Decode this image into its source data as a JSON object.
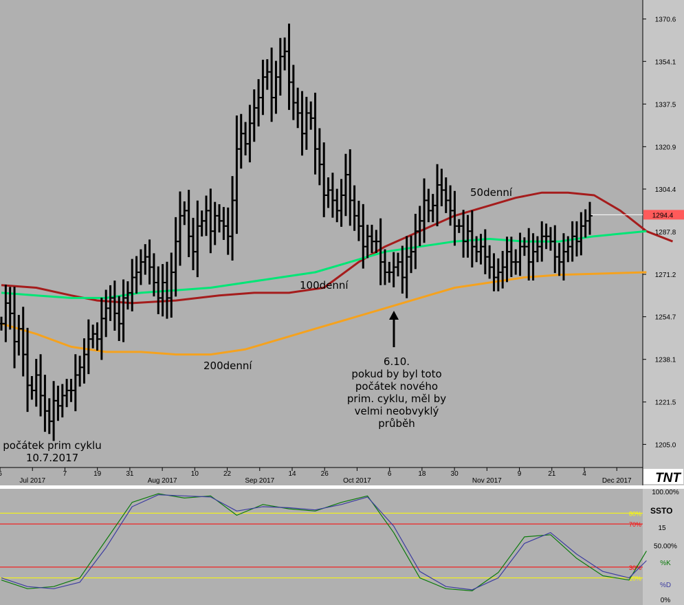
{
  "chart_data": [
    {
      "type": "bar",
      "subtype": "ohlc",
      "ylim": [
        1196,
        1378
      ],
      "price_labels": [
        "1370.6",
        "1354.1",
        "1337.5",
        "1320.9",
        "1304.4",
        "1287.8",
        "1271.2",
        "1254.7",
        "1238.1",
        "1221.5",
        "1205.0"
      ],
      "current_price": "1294.4",
      "x_labels": [
        {
          "text": "6",
          "sub": ""
        },
        {
          "text": "Jul 2017",
          "sub": "sub"
        },
        {
          "text": "7",
          "sub": ""
        },
        {
          "text": "19",
          "sub": ""
        },
        {
          "text": "31",
          "sub": ""
        },
        {
          "text": "Aug 2017",
          "sub": "sub"
        },
        {
          "text": "10",
          "sub": ""
        },
        {
          "text": "22",
          "sub": ""
        },
        {
          "text": "Sep 2017",
          "sub": "sub"
        },
        {
          "text": "14",
          "sub": ""
        },
        {
          "text": "26",
          "sub": ""
        },
        {
          "text": "Oct 2017",
          "sub": "sub"
        },
        {
          "text": "6",
          "sub": ""
        },
        {
          "text": "18",
          "sub": ""
        },
        {
          "text": "30",
          "sub": ""
        },
        {
          "text": "Nov 2017",
          "sub": "sub"
        },
        {
          "text": "9",
          "sub": ""
        },
        {
          "text": "21",
          "sub": ""
        },
        {
          "text": "4",
          "sub": ""
        },
        {
          "text": "Dec 2017",
          "sub": "sub"
        }
      ],
      "ohlc_close": [
        1252,
        1260,
        1256,
        1245,
        1250,
        1240,
        1228,
        1226,
        1232,
        1224,
        1218,
        1214,
        1222,
        1220,
        1224,
        1226,
        1226,
        1232,
        1235,
        1240,
        1246,
        1248,
        1246,
        1254,
        1258,
        1262,
        1256,
        1252,
        1262,
        1264,
        1270,
        1272,
        1276,
        1278,
        1274,
        1268,
        1262,
        1268,
        1262,
        1272,
        1284,
        1294,
        1296,
        1286,
        1280,
        1290,
        1292,
        1296,
        1288,
        1294,
        1292,
        1290,
        1286,
        1300,
        1320,
        1326,
        1322,
        1330,
        1336,
        1340,
        1348,
        1350,
        1340,
        1348,
        1356,
        1358,
        1346,
        1338,
        1334,
        1326,
        1334,
        1332,
        1320,
        1314,
        1302,
        1304,
        1300,
        1296,
        1302,
        1310,
        1300,
        1294,
        1290,
        1282,
        1286,
        1284,
        1284,
        1276,
        1272,
        1272,
        1274,
        1276,
        1270,
        1278,
        1280,
        1288,
        1292,
        1300,
        1296,
        1298,
        1306,
        1304,
        1300,
        1296,
        1290,
        1290,
        1284,
        1288,
        1282,
        1280,
        1282,
        1278,
        1274,
        1270,
        1272,
        1274,
        1280,
        1276,
        1276,
        1282,
        1282,
        1276,
        1280,
        1282,
        1286,
        1286,
        1284,
        1278,
        1276,
        1280,
        1282,
        1286,
        1284,
        1290,
        1292,
        1294
      ],
      "series": [
        {
          "name": "50denní",
          "color": "#a51c1c",
          "values": [
            1267,
            1266,
            1263,
            1261,
            1260,
            1261,
            1263,
            1264,
            1264,
            1266,
            1276,
            1282,
            1288,
            1294,
            1298,
            1301,
            1303,
            1303,
            1302,
            1296,
            1288,
            1284
          ],
          "x": [
            0,
            8,
            16,
            22,
            30,
            40,
            50,
            58,
            66,
            74,
            82,
            88,
            96,
            104,
            112,
            118,
            124,
            130,
            136,
            142,
            148,
            154
          ]
        },
        {
          "name": "100denní",
          "color": "#00e676",
          "values": [
            1264,
            1263,
            1262,
            1262,
            1264,
            1265,
            1266,
            1268,
            1270,
            1272,
            1276,
            1280,
            1282,
            1284,
            1285,
            1284,
            1284,
            1286,
            1288
          ],
          "x": [
            0,
            8,
            16,
            24,
            32,
            40,
            48,
            56,
            64,
            72,
            80,
            88,
            96,
            104,
            112,
            120,
            128,
            136,
            148
          ]
        },
        {
          "name": "200denní",
          "color": "#f5a21e",
          "values": [
            1252,
            1248,
            1243,
            1241,
            1241,
            1240,
            1240,
            1242,
            1246,
            1250,
            1254,
            1258,
            1262,
            1266,
            1268,
            1270,
            1271,
            1272
          ],
          "x": [
            0,
            8,
            16,
            24,
            32,
            40,
            48,
            56,
            64,
            72,
            80,
            88,
            96,
            104,
            112,
            120,
            128,
            148
          ]
        }
      ],
      "annotations": {
        "ma50": "50denní",
        "ma100": "100denní",
        "ma200": "200denní",
        "oct6_lines": [
          "6.10.",
          "pokud by byl toto",
          "počátek nového",
          "prim. cyklu, měl by",
          "velmi neobvyklý",
          "průběh"
        ],
        "cycle_start_lines": [
          "počátek prim cyklu",
          "10.7.2017"
        ]
      },
      "logo": "TNT",
      "colors": {
        "bg": "#b0b0b0",
        "bars": "#000000",
        "current_price_bg": "#ff5a5a"
      }
    },
    {
      "type": "line",
      "name": "SSTO",
      "period": "15",
      "ylim": [
        0,
        100
      ],
      "scale_labels": [
        "100.00%",
        "50.00%",
        "0%"
      ],
      "levels": [
        {
          "value": 80,
          "label": "80%",
          "color": "#ffff00"
        },
        {
          "value": 70,
          "label": "70%",
          "color": "#ff0000"
        },
        {
          "value": 30,
          "label": "30%",
          "color": "#ff0000"
        },
        {
          "value": 20,
          "label": "20%",
          "color": "#ffff00"
        }
      ],
      "series": [
        {
          "name": "%K",
          "color": "#0b7a0b",
          "x": [
            0,
            6,
            12,
            18,
            24,
            30,
            36,
            42,
            48,
            54,
            60,
            66,
            72,
            78,
            84,
            90,
            96,
            102,
            108,
            114,
            120,
            126,
            132,
            138,
            144,
            148
          ],
          "values": [
            18,
            10,
            12,
            20,
            55,
            90,
            98,
            94,
            96,
            78,
            88,
            84,
            82,
            90,
            96,
            62,
            20,
            10,
            8,
            25,
            58,
            60,
            38,
            22,
            18,
            45
          ]
        },
        {
          "name": "%D",
          "color": "#3c3ca0",
          "x": [
            0,
            6,
            12,
            18,
            24,
            30,
            36,
            42,
            48,
            54,
            60,
            66,
            72,
            78,
            84,
            90,
            96,
            102,
            108,
            114,
            120,
            126,
            132,
            138,
            144,
            148
          ],
          "values": [
            20,
            12,
            10,
            16,
            48,
            86,
            97,
            96,
            95,
            82,
            86,
            85,
            83,
            88,
            95,
            68,
            26,
            12,
            9,
            20,
            52,
            62,
            42,
            26,
            20,
            36
          ]
        }
      ]
    }
  ]
}
